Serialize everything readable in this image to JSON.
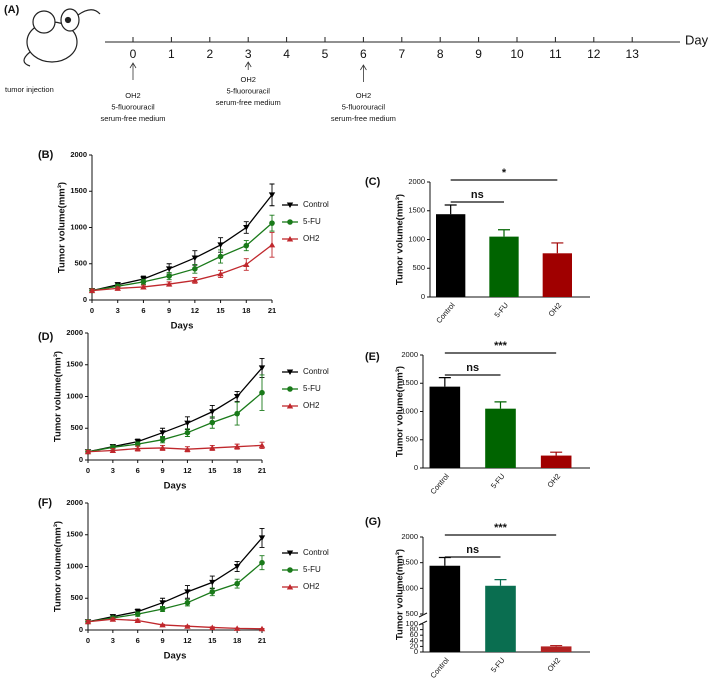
{
  "timeline": {
    "label": "(A)",
    "unit": "Day",
    "days": [
      0,
      1,
      2,
      3,
      4,
      5,
      6,
      7,
      8,
      9,
      10,
      11,
      12,
      13
    ],
    "injection_label": "tumor injection",
    "treatments": [
      {
        "day": 0,
        "lines": [
          "OH2",
          "5-fluorouracil",
          "serum-free medium"
        ]
      },
      {
        "day": 3,
        "lines": [
          "OH2",
          "5-fluorouracil",
          "serum-free medium"
        ]
      },
      {
        "day": 6,
        "lines": [
          "OH2",
          "5-fluorouracil",
          "serum-free medium"
        ]
      }
    ]
  },
  "chart_data": [
    {
      "type": "line",
      "panel": "(B)",
      "ylabel": "Tumor volume(mm³)",
      "xlabel": "Days",
      "x": [
        0,
        3,
        6,
        9,
        12,
        15,
        18,
        21
      ],
      "xlim": [
        0,
        21
      ],
      "xticks": [
        0,
        3,
        6,
        9,
        12,
        15,
        18,
        21
      ],
      "ylim": [
        0,
        2000
      ],
      "yticks": [
        0,
        500,
        1000,
        1500,
        2000
      ],
      "series": [
        {
          "name": "Control",
          "color": "#000000",
          "marker": "triangle-down",
          "values": [
            130,
            210,
            290,
            430,
            580,
            760,
            1000,
            1450
          ],
          "errors": [
            20,
            30,
            40,
            70,
            100,
            100,
            80,
            150
          ]
        },
        {
          "name": "5-FU",
          "color": "#1a7a1a",
          "marker": "circle",
          "values": [
            130,
            190,
            250,
            330,
            430,
            600,
            750,
            1060
          ],
          "errors": [
            20,
            25,
            35,
            50,
            60,
            90,
            70,
            110
          ]
        },
        {
          "name": "OH2",
          "color": "#c0282d",
          "marker": "triangle-up",
          "values": [
            130,
            160,
            180,
            220,
            270,
            360,
            490,
            760
          ],
          "errors": [
            20,
            20,
            25,
            30,
            40,
            50,
            80,
            170
          ]
        }
      ]
    },
    {
      "type": "bar",
      "panel": "(C)",
      "ylabel": "Tumor volume(mm³)",
      "categories": [
        "Control",
        "5-FU",
        "OH2"
      ],
      "values": [
        1440,
        1050,
        760
      ],
      "errors": [
        160,
        120,
        180
      ],
      "colors": [
        "#000000",
        "#006400",
        "#a00000"
      ],
      "ylim": [
        0,
        2000
      ],
      "yticks": [
        0,
        500,
        1000,
        1500,
        2000
      ],
      "significance": [
        {
          "from": 0,
          "to": 1,
          "label": "ns"
        },
        {
          "from": 0,
          "to": 2,
          "label": "*"
        }
      ]
    },
    {
      "type": "line",
      "panel": "(D)",
      "ylabel": "Tumor volume(mm³)",
      "xlabel": "Days",
      "x": [
        0,
        3,
        6,
        9,
        12,
        15,
        18,
        21
      ],
      "xlim": [
        0,
        21
      ],
      "xticks": [
        0,
        3,
        6,
        9,
        12,
        15,
        18,
        21
      ],
      "ylim": [
        0,
        2000
      ],
      "yticks": [
        0,
        500,
        1000,
        1500,
        2000
      ],
      "series": [
        {
          "name": "Control",
          "color": "#000000",
          "marker": "triangle-down",
          "values": [
            130,
            210,
            290,
            430,
            580,
            760,
            1000,
            1450
          ],
          "errors": [
            20,
            30,
            40,
            70,
            100,
            100,
            80,
            150
          ]
        },
        {
          "name": "5-FU",
          "color": "#1a7a1a",
          "marker": "circle",
          "values": [
            130,
            200,
            250,
            320,
            430,
            590,
            730,
            1060
          ],
          "errors": [
            20,
            25,
            35,
            50,
            60,
            90,
            180,
            280
          ]
        },
        {
          "name": "OH2",
          "color": "#c0282d",
          "marker": "triangle-up",
          "values": [
            130,
            150,
            180,
            190,
            170,
            190,
            210,
            230
          ],
          "errors": [
            20,
            30,
            40,
            40,
            40,
            40,
            40,
            50
          ]
        }
      ]
    },
    {
      "type": "bar",
      "panel": "(E)",
      "ylabel": "Tumor volume(mm³)",
      "categories": [
        "Control",
        "5-FU",
        "OH2"
      ],
      "values": [
        1440,
        1050,
        220
      ],
      "errors": [
        160,
        120,
        60
      ],
      "colors": [
        "#000000",
        "#006400",
        "#a00000"
      ],
      "ylim": [
        0,
        2000
      ],
      "yticks": [
        0,
        500,
        1000,
        1500,
        2000
      ],
      "significance": [
        {
          "from": 0,
          "to": 1,
          "label": "ns"
        },
        {
          "from": 0,
          "to": 2,
          "label": "***"
        }
      ]
    },
    {
      "type": "line",
      "panel": "(F)",
      "ylabel": "Tumor volume(mm³)",
      "xlabel": "Days",
      "x": [
        0,
        3,
        6,
        9,
        12,
        15,
        18,
        21
      ],
      "xlim": [
        0,
        21
      ],
      "xticks": [
        0,
        3,
        6,
        9,
        12,
        15,
        18,
        21
      ],
      "ylim": [
        0,
        2000
      ],
      "yticks": [
        0,
        500,
        1000,
        1500,
        2000
      ],
      "series": [
        {
          "name": "Control",
          "color": "#000000",
          "marker": "triangle-down",
          "values": [
            130,
            210,
            290,
            430,
            600,
            750,
            1000,
            1450
          ],
          "errors": [
            20,
            30,
            40,
            70,
            100,
            100,
            80,
            150
          ]
        },
        {
          "name": "5-FU",
          "color": "#1a7a1a",
          "marker": "circle",
          "values": [
            130,
            190,
            250,
            330,
            430,
            600,
            730,
            1060
          ],
          "errors": [
            20,
            25,
            35,
            40,
            50,
            60,
            70,
            110
          ]
        },
        {
          "name": "OH2",
          "color": "#c0282d",
          "marker": "triangle-up",
          "values": [
            130,
            170,
            150,
            80,
            60,
            40,
            25,
            20
          ],
          "errors": [
            20,
            20,
            20,
            10,
            10,
            10,
            5,
            5
          ]
        }
      ]
    },
    {
      "type": "bar",
      "panel": "(G)",
      "ylabel": "Tumor volume(mm³)",
      "categories": [
        "Control",
        "5-FU",
        "OH2"
      ],
      "values": [
        1440,
        1050,
        20
      ],
      "errors": [
        160,
        120,
        3
      ],
      "colors": [
        "#000000",
        "#0a6e50",
        "#b22222"
      ],
      "ylim": [
        0,
        2000
      ],
      "axis_break": [
        100,
        500
      ],
      "yticks": [
        0,
        20,
        40,
        60,
        80,
        100,
        500,
        1000,
        1500,
        2000
      ],
      "significance": [
        {
          "from": 0,
          "to": 1,
          "label": "ns"
        },
        {
          "from": 0,
          "to": 2,
          "label": "***"
        }
      ]
    }
  ]
}
